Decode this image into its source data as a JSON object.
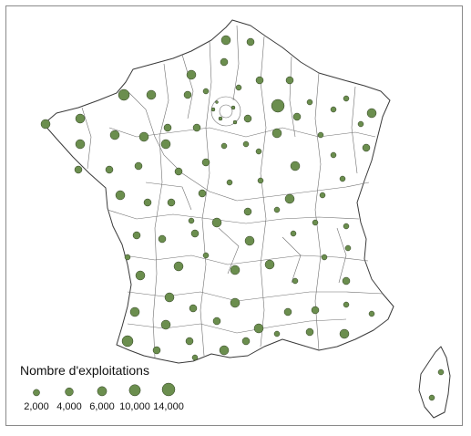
{
  "legend": {
    "title": "Nombre d'exploitations",
    "items": [
      {
        "label": "2,000",
        "value": 2000
      },
      {
        "label": "4,000",
        "value": 4000
      },
      {
        "label": "6,000",
        "value": 6000
      },
      {
        "label": "10,000",
        "value": 10000
      },
      {
        "label": "14,000",
        "value": 14000
      }
    ]
  },
  "colors": {
    "symbol_fill": "#6b8e4e",
    "border": "#3a3a3a",
    "background": "#ffffff"
  }
}
